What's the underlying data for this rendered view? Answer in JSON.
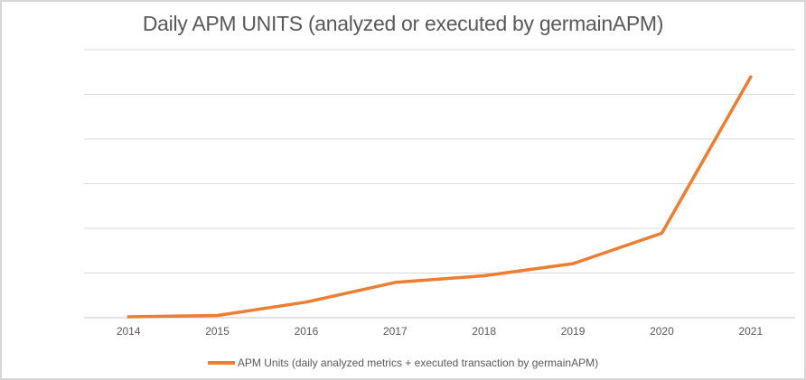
{
  "title": "Daily APM UNITS (analyzed or executed by germainAPM)",
  "legend": {
    "label": "APM Units (daily analyzed metrics + executed transaction by germainAPM)"
  },
  "colors": {
    "accent_line": "#ED7D31",
    "gridline": "#D9D9D9",
    "axis_line": "#C9C9C9",
    "text": "#595959",
    "frame_border": "#D6D6D6",
    "background": "#FFFFFF"
  },
  "chart_data": {
    "type": "line",
    "title": "Daily APM UNITS (analyzed or executed by germainAPM)",
    "categories": [
      "2014",
      "2015",
      "2016",
      "2017",
      "2018",
      "2019",
      "2020",
      "2021"
    ],
    "series": [
      {
        "name": "APM Units (daily analyzed metrics + executed transaction by germainAPM)",
        "values": [
          0.02,
          0.05,
          0.35,
          0.79,
          0.94,
          1.21,
          1.89,
          5.39
        ],
        "color": "#ED7D31"
      }
    ],
    "xlabel": "",
    "ylabel": "",
    "ylim": [
      0,
      6
    ],
    "y_gridline_interval": 1,
    "y_tick_labels_visible": false,
    "grid": true,
    "legend_position": "bottom",
    "x_axis_style": "category-between-ticks"
  }
}
